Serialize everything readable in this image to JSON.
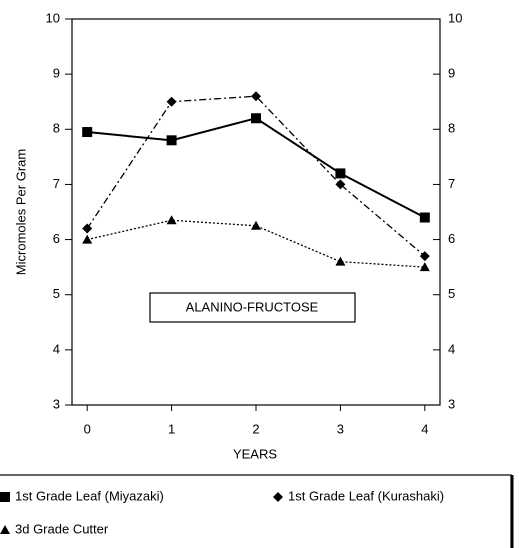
{
  "chart_data": {
    "type": "line",
    "x_label": "YEARS",
    "y_label": "Micromoles Per Gram",
    "annotation": "ALANINO-FRUCTOSE",
    "x": [
      0,
      1,
      2,
      3,
      4
    ],
    "xlim": [
      -0.18,
      4.18
    ],
    "xticks": [
      0,
      1,
      2,
      3,
      4
    ],
    "ylim": [
      3,
      10
    ],
    "yticks": [
      3,
      4,
      5,
      6,
      7,
      8,
      9,
      10
    ],
    "y2lim": [
      3,
      10
    ],
    "y2ticks": [
      3,
      4,
      5,
      6,
      7,
      8,
      9,
      10
    ],
    "series": [
      {
        "name": "1st Grade Leaf (Miyazaki)",
        "color": "#000000",
        "marker": "square",
        "linestyle": "solid",
        "values": [
          7.95,
          7.8,
          8.2,
          7.2,
          6.4
        ]
      },
      {
        "name": "1st Grade Leaf (Kurashaki)",
        "color": "#000000",
        "marker": "diamond",
        "linestyle": "dashdot",
        "values": [
          6.2,
          8.5,
          8.6,
          7.0,
          5.7
        ]
      },
      {
        "name": "3d Grade Cutter",
        "color": "#000000",
        "marker": "triangle",
        "linestyle": "dotted",
        "values": [
          6.0,
          6.35,
          6.25,
          5.6,
          5.5
        ]
      }
    ]
  }
}
